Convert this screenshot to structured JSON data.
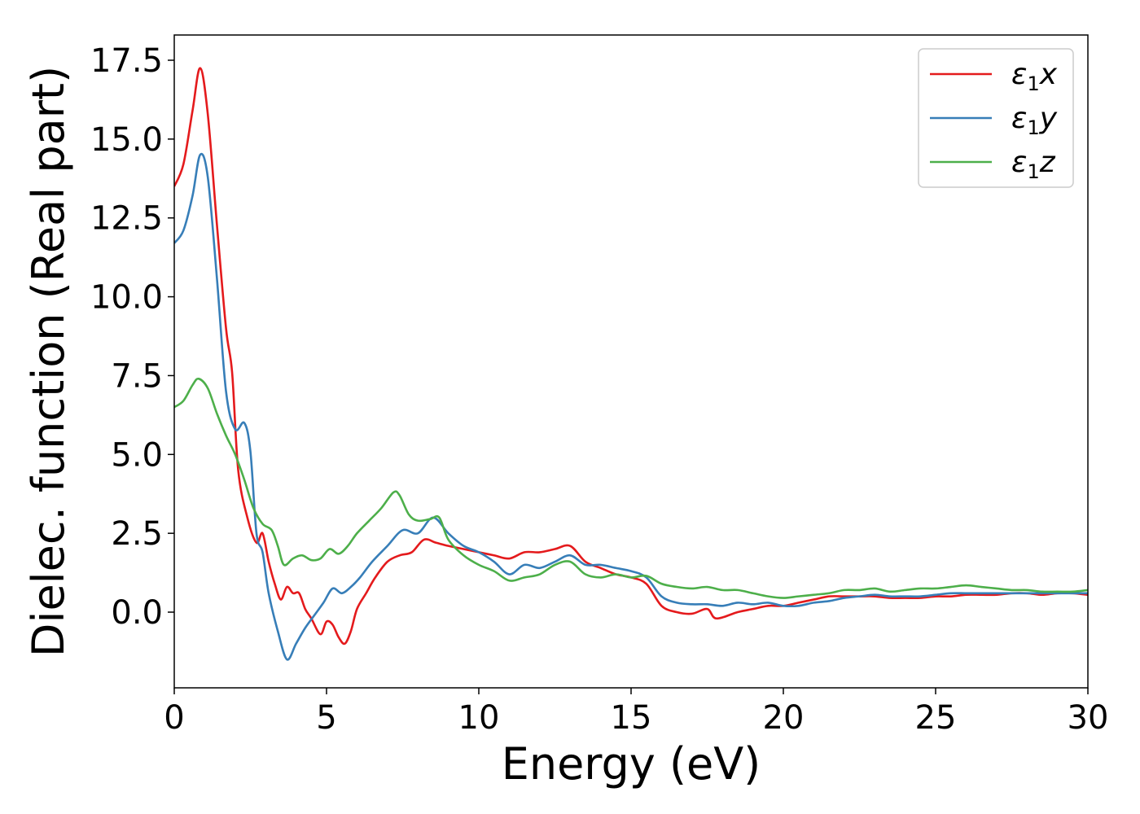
{
  "chart_data": {
    "type": "line",
    "title": "",
    "xlabel": "Energy (eV)",
    "ylabel": "Dielec. function (Real part)",
    "xlim": [
      0,
      30
    ],
    "ylim": [
      -2.4,
      18.3
    ],
    "xticks": [
      0,
      5,
      10,
      15,
      20,
      25,
      30
    ],
    "xtick_labels": [
      "0",
      "5",
      "10",
      "15",
      "20",
      "25",
      "30"
    ],
    "yticks": [
      0.0,
      2.5,
      5.0,
      7.5,
      10.0,
      12.5,
      15.0,
      17.5
    ],
    "ytick_labels": [
      "0.0",
      "2.5",
      "5.0",
      "7.5",
      "10.0",
      "12.5",
      "15.0",
      "17.5"
    ],
    "grid": false,
    "legend_position": "top-right",
    "series": [
      {
        "name": "ε1x",
        "legend": {
          "symbol": "ε",
          "sub": "1",
          "axis": "x"
        },
        "color": "#e41a1c",
        "x": [
          0.0,
          0.3,
          0.6,
          0.85,
          1.1,
          1.4,
          1.7,
          1.9,
          2.1,
          2.4,
          2.7,
          2.9,
          3.1,
          3.3,
          3.5,
          3.7,
          3.9,
          4.1,
          4.3,
          4.5,
          4.8,
          5.0,
          5.2,
          5.4,
          5.6,
          5.8,
          6.0,
          6.3,
          6.6,
          7.0,
          7.4,
          7.8,
          8.2,
          8.6,
          9.0,
          9.5,
          10.0,
          10.5,
          11.0,
          11.5,
          12.0,
          12.5,
          13.0,
          13.5,
          14.0,
          14.5,
          15.0,
          15.5,
          16.0,
          16.5,
          17.0,
          17.5,
          17.8,
          18.5,
          19.0,
          19.5,
          20.0,
          20.5,
          21.0,
          21.5,
          22.0,
          22.5,
          23.0,
          23.5,
          24.0,
          24.5,
          25.0,
          25.5,
          26.0,
          26.5,
          27.0,
          27.5,
          28.0,
          28.5,
          29.0,
          29.5,
          30.0
        ],
        "values": [
          13.5,
          14.2,
          15.9,
          17.25,
          15.8,
          12.3,
          9.0,
          7.6,
          4.5,
          3.0,
          2.2,
          2.5,
          1.6,
          0.9,
          0.4,
          0.8,
          0.6,
          0.6,
          0.1,
          -0.2,
          -0.7,
          -0.3,
          -0.4,
          -0.8,
          -1.0,
          -0.6,
          0.1,
          0.6,
          1.1,
          1.6,
          1.8,
          1.9,
          2.3,
          2.2,
          2.1,
          2.0,
          1.9,
          1.8,
          1.7,
          1.9,
          1.9,
          2.0,
          2.1,
          1.6,
          1.4,
          1.2,
          1.1,
          0.9,
          0.2,
          0.0,
          -0.05,
          0.1,
          -0.2,
          0.0,
          0.1,
          0.2,
          0.2,
          0.3,
          0.4,
          0.5,
          0.5,
          0.5,
          0.5,
          0.45,
          0.45,
          0.45,
          0.5,
          0.5,
          0.55,
          0.55,
          0.55,
          0.6,
          0.6,
          0.55,
          0.6,
          0.6,
          0.55
        ]
      },
      {
        "name": "ε1y",
        "legend": {
          "symbol": "ε",
          "sub": "1",
          "axis": "y"
        },
        "color": "#377eb8",
        "x": [
          0.0,
          0.3,
          0.6,
          0.85,
          1.1,
          1.4,
          1.7,
          2.0,
          2.3,
          2.5,
          2.7,
          2.9,
          3.1,
          3.4,
          3.7,
          4.0,
          4.3,
          4.6,
          4.9,
          5.2,
          5.5,
          5.8,
          6.1,
          6.5,
          7.0,
          7.5,
          8.0,
          8.5,
          9.0,
          9.5,
          10.0,
          10.5,
          11.0,
          11.5,
          12.0,
          12.5,
          13.0,
          13.5,
          14.0,
          14.5,
          15.0,
          15.5,
          16.0,
          16.5,
          17.0,
          17.5,
          18.0,
          18.5,
          19.0,
          19.5,
          20.0,
          20.5,
          21.0,
          21.5,
          22.0,
          22.5,
          23.0,
          23.5,
          24.0,
          24.5,
          25.0,
          25.5,
          26.0,
          26.5,
          27.0,
          27.5,
          28.0,
          28.5,
          29.0,
          29.5,
          30.0
        ],
        "values": [
          11.7,
          12.1,
          13.2,
          14.5,
          13.8,
          10.6,
          7.0,
          5.8,
          6.0,
          5.1,
          2.5,
          1.9,
          0.6,
          -0.6,
          -1.5,
          -1.0,
          -0.5,
          -0.1,
          0.3,
          0.75,
          0.6,
          0.8,
          1.1,
          1.6,
          2.1,
          2.6,
          2.5,
          3.0,
          2.5,
          2.1,
          1.9,
          1.6,
          1.2,
          1.5,
          1.4,
          1.6,
          1.8,
          1.5,
          1.5,
          1.4,
          1.3,
          1.1,
          0.5,
          0.3,
          0.25,
          0.25,
          0.2,
          0.3,
          0.25,
          0.3,
          0.2,
          0.2,
          0.3,
          0.35,
          0.45,
          0.5,
          0.55,
          0.5,
          0.5,
          0.5,
          0.55,
          0.6,
          0.6,
          0.6,
          0.6,
          0.6,
          0.6,
          0.6,
          0.6,
          0.6,
          0.6
        ]
      },
      {
        "name": "ε1z",
        "legend": {
          "symbol": "ε",
          "sub": "1",
          "axis": "z"
        },
        "color": "#4daf4a",
        "x": [
          0.0,
          0.3,
          0.6,
          0.8,
          1.1,
          1.4,
          1.7,
          2.0,
          2.3,
          2.6,
          2.9,
          3.2,
          3.4,
          3.6,
          3.9,
          4.2,
          4.5,
          4.8,
          5.1,
          5.4,
          5.7,
          6.0,
          6.4,
          6.8,
          7.2,
          7.4,
          7.7,
          8.0,
          8.4,
          8.7,
          9.0,
          9.5,
          10.0,
          10.5,
          11.0,
          11.5,
          12.0,
          12.5,
          13.0,
          13.5,
          14.0,
          14.5,
          15.0,
          15.5,
          16.0,
          16.5,
          17.0,
          17.5,
          18.0,
          18.5,
          19.0,
          19.5,
          20.0,
          20.5,
          21.0,
          21.5,
          22.0,
          22.5,
          23.0,
          23.5,
          24.0,
          24.5,
          25.0,
          25.5,
          26.0,
          26.5,
          27.0,
          27.5,
          28.0,
          28.5,
          29.0,
          29.5,
          30.0
        ],
        "values": [
          6.5,
          6.7,
          7.2,
          7.4,
          7.1,
          6.3,
          5.6,
          5.0,
          4.2,
          3.3,
          2.8,
          2.6,
          2.1,
          1.5,
          1.7,
          1.8,
          1.65,
          1.7,
          2.0,
          1.85,
          2.1,
          2.5,
          2.9,
          3.3,
          3.8,
          3.7,
          3.1,
          2.9,
          2.95,
          3.0,
          2.3,
          1.8,
          1.5,
          1.3,
          1.0,
          1.1,
          1.2,
          1.5,
          1.6,
          1.2,
          1.1,
          1.2,
          1.1,
          1.15,
          0.9,
          0.8,
          0.75,
          0.8,
          0.7,
          0.7,
          0.6,
          0.5,
          0.45,
          0.5,
          0.55,
          0.6,
          0.7,
          0.7,
          0.75,
          0.65,
          0.7,
          0.75,
          0.75,
          0.8,
          0.85,
          0.8,
          0.75,
          0.7,
          0.7,
          0.65,
          0.65,
          0.65,
          0.7
        ]
      }
    ]
  }
}
